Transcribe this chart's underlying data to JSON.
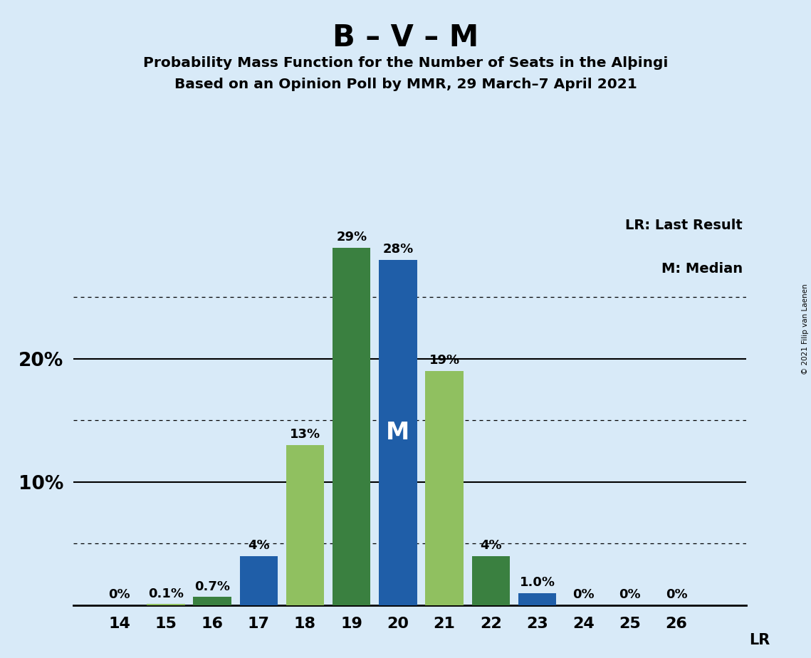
{
  "title": "B – V – M",
  "subtitle1": "Probability Mass Function for the Number of Seats in the Alþingi",
  "subtitle2": "Based on an Opinion Poll by MMR, 29 March–7 April 2021",
  "copyright": "© 2021 Filip van Laenen",
  "seats": [
    14,
    15,
    16,
    17,
    18,
    19,
    20,
    21,
    22,
    23,
    24,
    25,
    26
  ],
  "probabilities": [
    0.0,
    0.1,
    0.7,
    4.0,
    13.0,
    29.0,
    28.0,
    19.0,
    4.0,
    1.0,
    0.0,
    0.0,
    0.0
  ],
  "labels": [
    "0%",
    "0.1%",
    "0.7%",
    "4%",
    "13%",
    "29%",
    "28%",
    "19%",
    "4%",
    "1.0%",
    "0%",
    "0%",
    "0%"
  ],
  "bar_colors": [
    "#90C060",
    "#90C060",
    "#3A8040",
    "#1F5EA8",
    "#90C060",
    "#3A8040",
    "#1F5EA8",
    "#90C060",
    "#3A8040",
    "#1F5EA8",
    "#90C060",
    "#3A8040",
    "#1F5EA8"
  ],
  "median_seat": 20,
  "median_label": "M",
  "background_color": "#D8EAF8",
  "ylim": [
    0,
    32
  ],
  "solid_yticks": [
    10,
    20
  ],
  "dotted_yticks": [
    5,
    15,
    25
  ],
  "legend_lr": "LR: Last Result",
  "legend_m": "M: Median"
}
